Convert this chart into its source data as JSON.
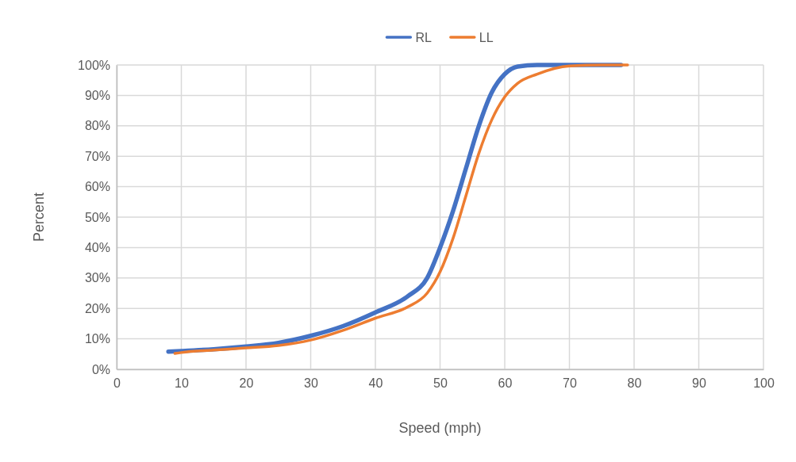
{
  "chart_data": {
    "type": "line",
    "xlabel": "Speed (mph)",
    "ylabel": "Percent",
    "xlim": [
      0,
      100
    ],
    "xticks": [
      0,
      10,
      20,
      30,
      40,
      50,
      60,
      70,
      80,
      90,
      100
    ],
    "ylim": [
      0,
      100
    ],
    "yticks": [
      {
        "value": 0,
        "label": "0%"
      },
      {
        "value": 10,
        "label": "10%"
      },
      {
        "value": 20,
        "label": "20%"
      },
      {
        "value": 30,
        "label": "30%"
      },
      {
        "value": 40,
        "label": "40%"
      },
      {
        "value": 50,
        "label": "50%"
      },
      {
        "value": 60,
        "label": "60%"
      },
      {
        "value": 70,
        "label": "70%"
      },
      {
        "value": 80,
        "label": "80%"
      },
      {
        "value": 90,
        "label": "90%"
      },
      {
        "value": 100,
        "label": "100%"
      }
    ],
    "grid": true,
    "legend": "top",
    "marker": "none",
    "series": [
      {
        "name": "RL",
        "color": "#4472c4",
        "x": [
          8,
          10,
          15,
          20,
          25,
          30,
          35,
          40,
          45,
          48,
          50,
          52,
          54,
          56,
          58,
          60,
          62,
          65,
          70,
          78
        ],
        "values": [
          5.8,
          6,
          6.6,
          7.5,
          8.7,
          11,
          14.2,
          18.7,
          24,
          30,
          40,
          52,
          66,
          80,
          91,
          97,
          99.5,
          100,
          100,
          100
        ]
      },
      {
        "name": "LL",
        "color": "#ed7d31",
        "x": [
          9,
          10,
          15,
          20,
          25,
          30,
          35,
          40,
          45,
          48,
          50,
          52,
          54,
          56,
          58,
          60,
          62,
          65,
          70,
          75,
          79
        ],
        "values": [
          5.2,
          5.5,
          6.3,
          7,
          7.8,
          9.6,
          12.8,
          16.8,
          20.5,
          25,
          32,
          43,
          57,
          71,
          82,
          89.5,
          94,
          97,
          99.7,
          100,
          100
        ]
      }
    ]
  }
}
